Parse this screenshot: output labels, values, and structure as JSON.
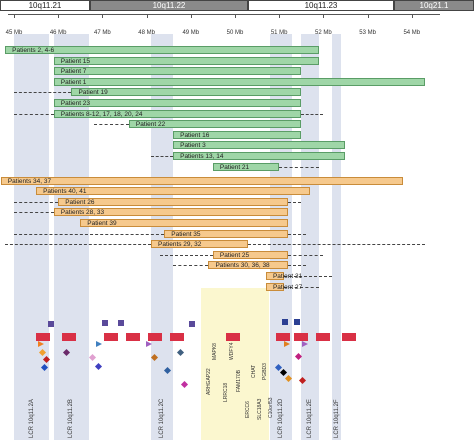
{
  "chromosome": {
    "segments": [
      {
        "label": "10q11.21",
        "start": 0,
        "end": 90,
        "fill": "#ffffff"
      },
      {
        "label": "10q11.22",
        "start": 90,
        "end": 248,
        "fill": "#8a8a8a"
      },
      {
        "label": "10q11.23",
        "start": 248,
        "end": 394,
        "fill": "#ffffff"
      },
      {
        "label": "10q21.1",
        "start": 394,
        "end": 474,
        "fill": "#8a8a8a"
      }
    ]
  },
  "axis": {
    "ticks": [
      "45 Mb",
      "46 Mb",
      "47 Mb",
      "48 Mb",
      "49 Mb",
      "50 Mb",
      "51 Mb",
      "52 Mb",
      "53 Mb",
      "54 Mb"
    ],
    "min_mb": 45,
    "max_mb": 54
  },
  "lcr_bands": [
    {
      "label": "LCR 10q11.2A",
      "start_mb": 45.0,
      "end_mb": 45.8
    },
    {
      "label": "LCR 10q11.2B",
      "start_mb": 45.9,
      "end_mb": 46.7
    },
    {
      "label": "LCR 10q11.2C",
      "start_mb": 48.1,
      "end_mb": 48.6
    },
    {
      "label": "LCR 10q11.2D",
      "start_mb": 50.8,
      "end_mb": 51.3
    },
    {
      "label": "LCR 10q11.2E",
      "start_mb": 51.5,
      "end_mb": 51.9
    },
    {
      "label": "LCR 10q11.2F",
      "start_mb": 52.2,
      "end_mb": 52.4
    }
  ],
  "tracks": [
    {
      "label": "Patients 2, 4-6",
      "color": "green",
      "start_mb": 44.8,
      "end_mb": 51.9
    },
    {
      "label": "Patient 15",
      "color": "green",
      "start_mb": 45.9,
      "end_mb": 51.9
    },
    {
      "label": "Patient 7",
      "color": "green",
      "start_mb": 45.9,
      "end_mb": 51.5
    },
    {
      "label": "Patient 1",
      "color": "green",
      "start_mb": 45.9,
      "end_mb": 54.3
    },
    {
      "label": "Patient 19",
      "color": "green",
      "start_mb": 46.3,
      "end_mb": 51.5,
      "dash_left": 45.0
    },
    {
      "label": "Patient 23",
      "color": "green",
      "start_mb": 45.9,
      "end_mb": 51.5
    },
    {
      "label": "Patients 8-12, 17, 18, 20, 24",
      "color": "green",
      "start_mb": 45.9,
      "end_mb": 51.5,
      "dash_left": 45.0,
      "dash_right": 52.0
    },
    {
      "label": "Patient 22",
      "color": "green",
      "start_mb": 47.6,
      "end_mb": 51.5,
      "dash_left": 46.8
    },
    {
      "label": "Patient 16",
      "color": "green",
      "start_mb": 48.6,
      "end_mb": 51.5
    },
    {
      "label": "Patient 3",
      "color": "green",
      "start_mb": 48.6,
      "end_mb": 52.5
    },
    {
      "label": "Patients 13, 14",
      "color": "green",
      "start_mb": 48.6,
      "end_mb": 52.5,
      "dash_left": 48.1
    },
    {
      "label": "Patient 21",
      "color": "green",
      "start_mb": 49.5,
      "end_mb": 51.0,
      "dash_right": 51.9
    },
    {
      "label": "Patients 34, 37",
      "color": "orange",
      "start_mb": 44.7,
      "end_mb": 53.8
    },
    {
      "label": "Patients 40, 41",
      "color": "orange",
      "start_mb": 45.5,
      "end_mb": 51.7
    },
    {
      "label": "Patient 26",
      "color": "orange",
      "start_mb": 46.0,
      "end_mb": 51.2,
      "dash_left": 45.0,
      "dash_right": 51.5
    },
    {
      "label": "Patients 28, 33",
      "color": "orange",
      "start_mb": 45.9,
      "end_mb": 51.2,
      "dash_left": 45.0
    },
    {
      "label": "Patient 39",
      "color": "orange",
      "start_mb": 46.5,
      "end_mb": 51.2
    },
    {
      "label": "Patient 35",
      "color": "orange",
      "start_mb": 48.4,
      "end_mb": 51.2,
      "dash_left": 45.0,
      "dash_right": 51.6
    },
    {
      "label": "Patients 29, 32",
      "color": "orange",
      "start_mb": 48.1,
      "end_mb": 50.3,
      "dash_left": 44.8,
      "dash_right": 54.3
    },
    {
      "label": "Patient 25",
      "color": "orange",
      "start_mb": 49.5,
      "end_mb": 51.2,
      "dash_left": 48.3,
      "dash_right": 52.0
    },
    {
      "label": "Patients 30, 36, 38",
      "color": "orange",
      "start_mb": 49.4,
      "end_mb": 51.2,
      "dash_left": 48.6,
      "dash_right": 51.6
    },
    {
      "label": "Patient 31",
      "color": "orange",
      "start_mb": 50.7,
      "end_mb": 51.1,
      "dash_right": 52.2
    },
    {
      "label": "Patient 27",
      "color": "orange",
      "start_mb": 50.7,
      "end_mb": 51.1,
      "dash_right": 51.9
    }
  ],
  "genes": [
    "ARHGAP22",
    "MAPK8",
    "LRRC18",
    "WDFY4",
    "FAM170B",
    "ERCC6",
    "CHAT",
    "SLC18A3",
    "PGBD3",
    "C10orf53"
  ]
}
